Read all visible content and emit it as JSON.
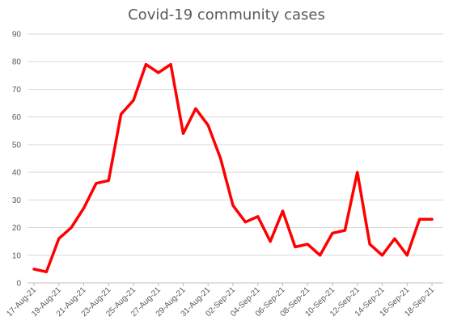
{
  "chart_data": {
    "type": "line",
    "title": "Covid-19 community cases",
    "xlabel": "",
    "ylabel": "",
    "ylim": [
      0,
      90
    ],
    "yticks": [
      0,
      10,
      20,
      30,
      40,
      50,
      60,
      70,
      80,
      90
    ],
    "grid": true,
    "legend": "none",
    "x": [
      "17-Aug-21",
      "18-Aug-21",
      "19-Aug-21",
      "20-Aug-21",
      "21-Aug-21",
      "22-Aug-21",
      "23-Aug-21",
      "24-Aug-21",
      "25-Aug-21",
      "26-Aug-21",
      "27-Aug-21",
      "28-Aug-21",
      "29-Aug-21",
      "30-Aug-21",
      "31-Aug-21",
      "01-Sep-21",
      "02-Sep-21",
      "03-Sep-21",
      "04-Sep-21",
      "05-Sep-21",
      "06-Sep-21",
      "07-Sep-21",
      "08-Sep-21",
      "09-Sep-21",
      "10-Sep-21",
      "11-Sep-21",
      "12-Sep-21",
      "13-Sep-21",
      "14-Sep-21",
      "15-Sep-21",
      "16-Sep-21",
      "17-Sep-21",
      "18-Sep-21"
    ],
    "xtick_labels": [
      "17-Aug-21",
      "19-Aug-21",
      "21-Aug-21",
      "23-Aug-21",
      "25-Aug-21",
      "27-Aug-21",
      "29-Aug-21",
      "31-Aug-21",
      "02-Sep-21",
      "04-Sep-21",
      "06-Sep-21",
      "08-Sep-21",
      "10-Sep-21",
      "12-Sep-21",
      "14-Sep-21",
      "16-Sep-21",
      "18-Sep-21"
    ],
    "series": [
      {
        "values": [
          5,
          4,
          16,
          20,
          27,
          36,
          37,
          61,
          66,
          79,
          76,
          79,
          54,
          63,
          57,
          45,
          28,
          22,
          24,
          15,
          26,
          13,
          14,
          10,
          18,
          19,
          40,
          14,
          10,
          16,
          10,
          23,
          23
        ],
        "color": "#ff0000"
      }
    ],
    "colors": {
      "line": "#ff0000",
      "grid": "#d9d9d9",
      "axis": "#bfbfbf",
      "text": "#595959"
    }
  }
}
